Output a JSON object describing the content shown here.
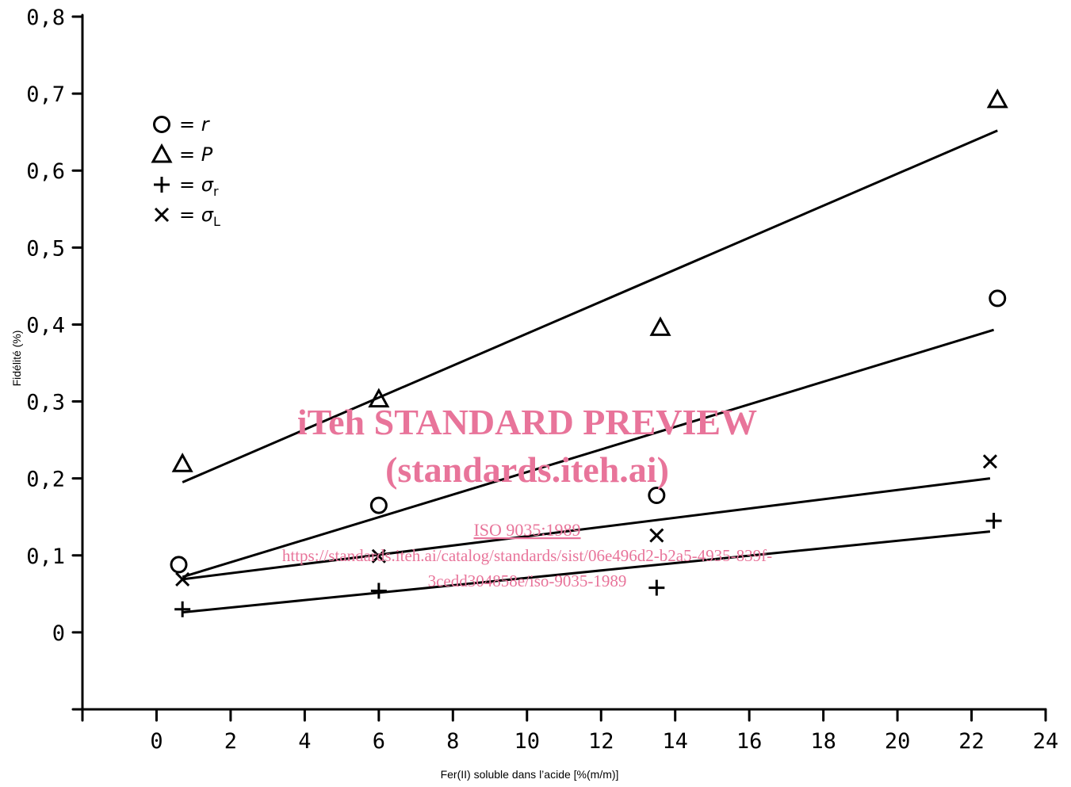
{
  "chart_data": {
    "type": "scatter",
    "xlabel": "Fer(II) soluble dans l’acide [%(m/m)]",
    "ylabel": "Fidélité (%)",
    "xlim": [
      -2,
      24
    ],
    "ylim": [
      -0.1,
      0.8
    ],
    "x_ticks": [
      0,
      2,
      4,
      6,
      8,
      10,
      12,
      14,
      16,
      18,
      20,
      22,
      24
    ],
    "x_tick_labels": [
      "0",
      "2",
      "4",
      "6",
      "8",
      "10",
      "12",
      "14",
      "16",
      "18",
      "20",
      "22",
      "24"
    ],
    "y_ticks": [
      0,
      0.1,
      0.2,
      0.3,
      0.4,
      0.5,
      0.6,
      0.7,
      0.8
    ],
    "y_tick_labels": [
      "0",
      "0,1",
      "0,2",
      "0,3",
      "0,4",
      "0,5",
      "0,6",
      "0,7",
      "0,8"
    ],
    "legend_position": "top-left",
    "series": [
      {
        "key": "r",
        "name": "r",
        "marker": "circle",
        "points": [
          [
            0.6,
            0.088
          ],
          [
            6.0,
            0.165
          ],
          [
            13.5,
            0.178
          ],
          [
            22.7,
            0.434
          ]
        ],
        "fit": [
          [
            0.7,
            0.072
          ],
          [
            22.6,
            0.393
          ]
        ]
      },
      {
        "key": "P",
        "name": "P",
        "marker": "triangle",
        "points": [
          [
            0.7,
            0.219
          ],
          [
            6.0,
            0.303
          ],
          [
            13.6,
            0.396
          ],
          [
            22.7,
            0.692
          ]
        ],
        "fit": [
          [
            0.7,
            0.195
          ],
          [
            22.7,
            0.652
          ]
        ]
      },
      {
        "key": "sigma_r",
        "name": "σr",
        "marker": "plus",
        "points": [
          [
            0.7,
            0.03
          ],
          [
            6.0,
            0.054
          ],
          [
            13.5,
            0.058
          ],
          [
            22.6,
            0.145
          ]
        ],
        "fit": [
          [
            0.7,
            0.026
          ],
          [
            22.5,
            0.131
          ]
        ]
      },
      {
        "key": "sigma_L",
        "name": "σL",
        "marker": "cross",
        "points": [
          [
            0.7,
            0.069
          ],
          [
            6.0,
            0.099
          ],
          [
            13.5,
            0.126
          ],
          [
            22.5,
            0.222
          ]
        ],
        "fit": [
          [
            0.7,
            0.069
          ],
          [
            22.5,
            0.2
          ]
        ]
      }
    ],
    "legend": [
      {
        "symbol": "circle",
        "label": "r",
        "sub": ""
      },
      {
        "symbol": "triangle",
        "label": "P",
        "sub": ""
      },
      {
        "symbol": "plus",
        "label": "σ",
        "sub": "r"
      },
      {
        "symbol": "cross",
        "label": "σ",
        "sub": "L"
      }
    ]
  },
  "watermark": {
    "line1": "iTeh STANDARD PREVIEW",
    "line2": "(standards.iteh.ai)",
    "iso": "ISO 9035:1989",
    "url1": "https://standards.iteh.ai/catalog/standards/sist/06e496d2-b2a5-4935-839f-",
    "url2": "3cedd304858e/iso-9035-1989"
  }
}
